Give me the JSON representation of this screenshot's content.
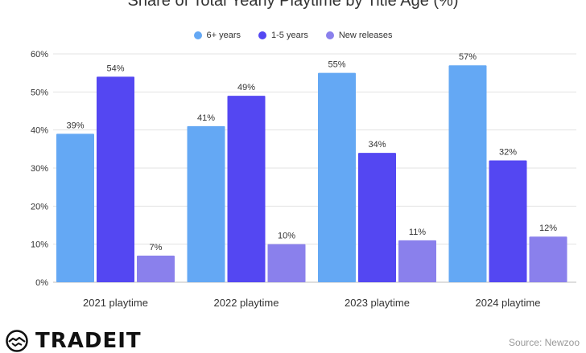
{
  "chart_data": {
    "type": "bar",
    "title": "Share of Total Yearly Playtime by Title Age (%)",
    "categories": [
      "2021 playtime",
      "2022 playtime",
      "2023 playtime",
      "2024 playtime"
    ],
    "series": [
      {
        "name": "6+ years",
        "color": "#64a8f4",
        "values": [
          39,
          41,
          55,
          57
        ]
      },
      {
        "name": "1-5 years",
        "color": "#5447f2",
        "values": [
          54,
          49,
          34,
          32
        ]
      },
      {
        "name": "New releases",
        "color": "#8a80ec",
        "values": [
          7,
          10,
          11,
          12
        ]
      }
    ],
    "value_suffix": "%",
    "yticks": [
      "0%",
      "10%",
      "20%",
      "30%",
      "40%",
      "50%",
      "60%"
    ],
    "ylim": [
      0,
      60
    ],
    "grid": true,
    "legend": "top-center"
  },
  "brand": {
    "name": "TRADEIT",
    "logo_icon": "handshake-icon"
  },
  "source": "Source: Newzoo"
}
